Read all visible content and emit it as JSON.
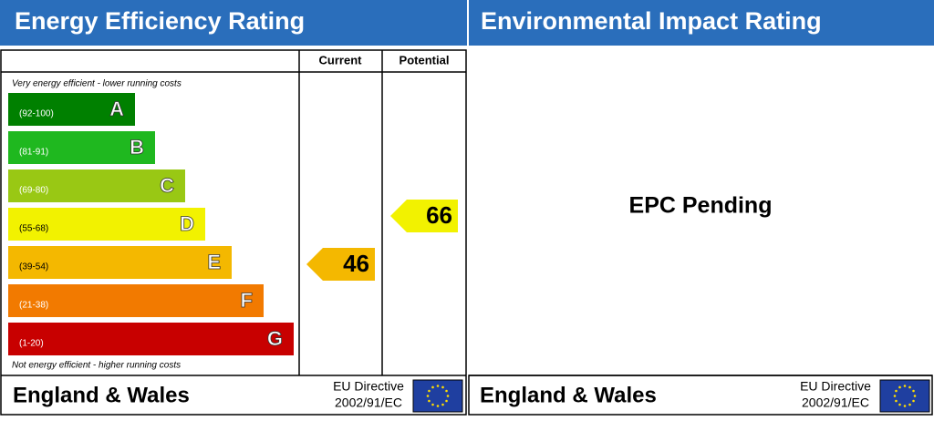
{
  "energy": {
    "title": "Energy Efficiency Rating",
    "columns": [
      "Current",
      "Potential"
    ],
    "top_note": "Very energy efficient - lower running costs",
    "bottom_note": "Not energy efficient - higher running costs",
    "bands": [
      {
        "range": "(92-100)",
        "letter": "A",
        "color": "#008000"
      },
      {
        "range": "(81-91)",
        "letter": "B",
        "color": "#1fb81f"
      },
      {
        "range": "(69-80)",
        "letter": "C",
        "color": "#99c814"
      },
      {
        "range": "(55-68)",
        "letter": "D",
        "color": "#f2f200"
      },
      {
        "range": "(39-54)",
        "letter": "E",
        "color": "#f4b800"
      },
      {
        "range": "(21-38)",
        "letter": "F",
        "color": "#f27a00"
      },
      {
        "range": "(1-20)",
        "letter": "G",
        "color": "#c80000"
      }
    ],
    "current": 46,
    "potential": 66,
    "footer": {
      "region": "England & Wales",
      "directive": "EU Directive",
      "code": "2002/91/EC"
    }
  },
  "environmental": {
    "title": "Environmental Impact Rating",
    "status": "EPC Pending",
    "footer": {
      "region": "England & Wales",
      "directive": "EU Directive",
      "code": "2002/91/EC"
    }
  }
}
